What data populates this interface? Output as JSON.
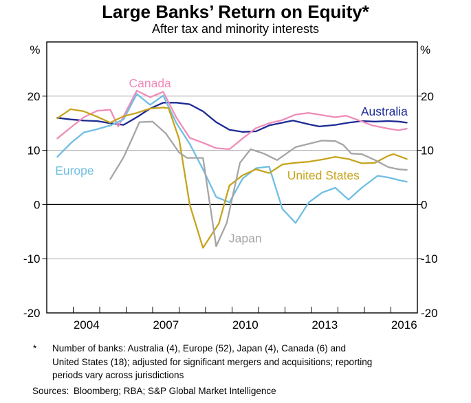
{
  "title": "Large Banks’ Return on Equity*",
  "subtitle": "After tax and minority interests",
  "y_axis": {
    "unit": "%",
    "ticks": [
      20,
      10,
      0,
      -10,
      -20
    ],
    "gridlines": [
      20,
      10,
      -10
    ]
  },
  "x_axis": {
    "labels": [
      "2004",
      "2007",
      "2010",
      "2013",
      "2016"
    ],
    "tick_years": [
      2004,
      2005,
      2006,
      2007,
      2008,
      2009,
      2010,
      2011,
      2012,
      2013,
      2014,
      2015,
      2016
    ]
  },
  "colors": {
    "gridline": "#ABABAB",
    "axis": "#000000",
    "australia": "#1B2A94",
    "canada": "#F08CB9",
    "europe": "#6FBEE3",
    "united_states": "#C6A41D",
    "japan": "#A5A5A5"
  },
  "chart_data": {
    "type": "line",
    "title": "Large Banks’ Return on Equity*",
    "subtitle": "After tax and minority interests",
    "unit": "%",
    "x_domain": [
      2003,
      2017
    ],
    "y_domain": [
      -20,
      30
    ],
    "grid": true,
    "legend": "inline-labels",
    "series": [
      {
        "name": "Australia",
        "color": "#1B2A94",
        "label_at": [
          2015.75,
          17.2
        ],
        "points": [
          [
            2003.4,
            16.0
          ],
          [
            2003.9,
            15.7
          ],
          [
            2004.4,
            15.5
          ],
          [
            2004.9,
            15.4
          ],
          [
            2005.4,
            15.0
          ],
          [
            2005.9,
            14.7
          ],
          [
            2006.4,
            16.1
          ],
          [
            2006.9,
            17.7
          ],
          [
            2007.4,
            18.8
          ],
          [
            2007.9,
            18.8
          ],
          [
            2008.4,
            18.5
          ],
          [
            2008.9,
            17.2
          ],
          [
            2009.4,
            15.2
          ],
          [
            2009.9,
            13.8
          ],
          [
            2010.4,
            13.4
          ],
          [
            2010.9,
            13.5
          ],
          [
            2011.4,
            14.6
          ],
          [
            2011.9,
            15.1
          ],
          [
            2012.3,
            15.5
          ],
          [
            2012.9,
            14.8
          ],
          [
            2013.3,
            14.4
          ],
          [
            2013.9,
            14.7
          ],
          [
            2014.4,
            15.1
          ],
          [
            2014.9,
            15.4
          ],
          [
            2015.4,
            15.3
          ],
          [
            2015.9,
            15.4
          ],
          [
            2016.3,
            15.3
          ],
          [
            2016.6,
            15.1
          ]
        ]
      },
      {
        "name": "Canada",
        "color": "#F08CB9",
        "label_at": [
          2006.9,
          22.4
        ],
        "points": [
          [
            2003.4,
            12.2
          ],
          [
            2003.9,
            14.2
          ],
          [
            2004.4,
            16.1
          ],
          [
            2004.9,
            17.3
          ],
          [
            2005.4,
            17.5
          ],
          [
            2005.7,
            14.4
          ],
          [
            2006.4,
            21.0
          ],
          [
            2006.9,
            19.8
          ],
          [
            2007.4,
            20.8
          ],
          [
            2007.9,
            16.0
          ],
          [
            2008.4,
            12.3
          ],
          [
            2008.9,
            11.4
          ],
          [
            2009.4,
            10.4
          ],
          [
            2009.9,
            10.2
          ],
          [
            2010.4,
            12.2
          ],
          [
            2010.9,
            14.1
          ],
          [
            2011.4,
            15.0
          ],
          [
            2011.9,
            15.6
          ],
          [
            2012.4,
            16.6
          ],
          [
            2012.9,
            16.9
          ],
          [
            2013.4,
            16.5
          ],
          [
            2013.9,
            16.1
          ],
          [
            2014.3,
            16.4
          ],
          [
            2014.7,
            15.7
          ],
          [
            2015.3,
            14.6
          ],
          [
            2015.9,
            14.0
          ],
          [
            2016.3,
            13.7
          ],
          [
            2016.6,
            14.0
          ]
        ]
      },
      {
        "name": "Europe",
        "color": "#6FBEE3",
        "label_at": [
          2004.05,
          6.3
        ],
        "points": [
          [
            2003.4,
            8.8
          ],
          [
            2003.9,
            11.3
          ],
          [
            2004.4,
            13.3
          ],
          [
            2004.9,
            13.9
          ],
          [
            2005.4,
            14.6
          ],
          [
            2005.9,
            15.7
          ],
          [
            2006.4,
            20.4
          ],
          [
            2006.9,
            18.4
          ],
          [
            2007.4,
            20.1
          ],
          [
            2007.9,
            15.0
          ],
          [
            2008.4,
            11.2
          ],
          [
            2008.9,
            6.5
          ],
          [
            2009.4,
            1.4
          ],
          [
            2009.9,
            0.4
          ],
          [
            2010.4,
            4.8
          ],
          [
            2010.9,
            6.7
          ],
          [
            2011.4,
            7.0
          ],
          [
            2011.9,
            -0.8
          ],
          [
            2012.4,
            -3.4
          ],
          [
            2012.9,
            0.4
          ],
          [
            2013.4,
            2.2
          ],
          [
            2013.9,
            3.1
          ],
          [
            2014.4,
            0.9
          ],
          [
            2014.9,
            3.1
          ],
          [
            2015.5,
            5.3
          ],
          [
            2015.9,
            5.0
          ],
          [
            2016.3,
            4.5
          ],
          [
            2016.6,
            4.2
          ]
        ]
      },
      {
        "name": "United States",
        "color": "#C6A41D",
        "label_at": [
          2013.45,
          5.4
        ],
        "points": [
          [
            2003.4,
            15.9
          ],
          [
            2003.9,
            17.6
          ],
          [
            2004.4,
            17.2
          ],
          [
            2004.9,
            16.2
          ],
          [
            2005.4,
            15.1
          ],
          [
            2005.9,
            16.3
          ],
          [
            2006.4,
            16.9
          ],
          [
            2006.9,
            17.7
          ],
          [
            2007.4,
            17.9
          ],
          [
            2007.6,
            17.8
          ],
          [
            2008.0,
            12.1
          ],
          [
            2008.4,
            0.0
          ],
          [
            2008.9,
            -8.0
          ],
          [
            2009.5,
            -3.5
          ],
          [
            2009.9,
            3.5
          ],
          [
            2010.4,
            5.4
          ],
          [
            2010.9,
            6.5
          ],
          [
            2011.4,
            5.8
          ],
          [
            2011.9,
            7.4
          ],
          [
            2012.4,
            7.7
          ],
          [
            2012.9,
            7.9
          ],
          [
            2013.4,
            8.3
          ],
          [
            2013.9,
            8.8
          ],
          [
            2014.4,
            8.4
          ],
          [
            2014.9,
            7.6
          ],
          [
            2015.4,
            7.7
          ],
          [
            2015.9,
            9.0
          ],
          [
            2016.1,
            9.3
          ],
          [
            2016.6,
            8.4
          ]
        ]
      },
      {
        "name": "Japan",
        "color": "#A5A5A5",
        "label_at": [
          2010.5,
          -6.2
        ],
        "points": [
          [
            2005.4,
            4.7
          ],
          [
            2005.9,
            8.7
          ],
          [
            2006.2,
            11.9
          ],
          [
            2006.5,
            15.2
          ],
          [
            2007.0,
            15.3
          ],
          [
            2007.5,
            13.1
          ],
          [
            2008.0,
            9.6
          ],
          [
            2008.3,
            8.6
          ],
          [
            2008.9,
            8.6
          ],
          [
            2009.4,
            -7.7
          ],
          [
            2009.8,
            -3.4
          ],
          [
            2010.3,
            7.7
          ],
          [
            2010.7,
            10.2
          ],
          [
            2011.2,
            9.4
          ],
          [
            2011.7,
            8.2
          ],
          [
            2012.4,
            10.6
          ],
          [
            2012.9,
            11.2
          ],
          [
            2013.4,
            11.8
          ],
          [
            2013.9,
            11.7
          ],
          [
            2014.2,
            11.0
          ],
          [
            2014.5,
            9.4
          ],
          [
            2014.9,
            9.3
          ],
          [
            2015.4,
            8.2
          ],
          [
            2015.9,
            6.9
          ],
          [
            2016.3,
            6.5
          ],
          [
            2016.6,
            6.4
          ]
        ]
      }
    ]
  },
  "footnote": {
    "marker": "*",
    "lines": [
      "Number of banks: Australia (4), Europe (52), Japan (4), Canada (6) and",
      "United States (18); adjusted for significant mergers and acquisitions; reporting",
      "periods vary across jurisdictions"
    ]
  },
  "sources": {
    "label": "Sources:",
    "text": "Bloomberg; RBA; S&P Global Market Intelligence"
  }
}
